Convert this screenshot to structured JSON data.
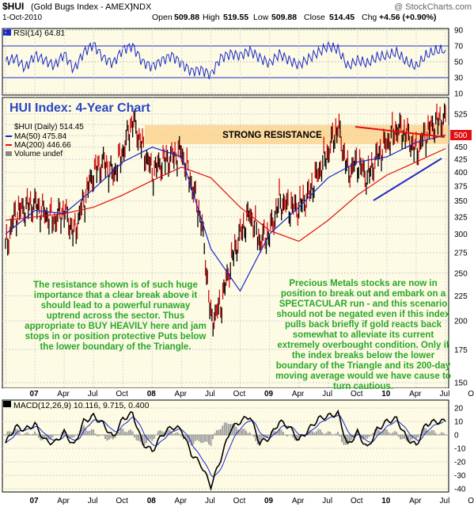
{
  "header": {
    "symbol": "$HUI",
    "name": "(Gold Bugs Index - AMEX)",
    "exchange": "INDX",
    "date": "1-Oct-2010",
    "watermark": "@ StockCharts.com",
    "open_label": "Open",
    "open": "509.88",
    "high_label": "High",
    "high": "519.55",
    "low_label": "Low",
    "low": "509.88",
    "close_label": "Close",
    "close": "514.45",
    "chg_label": "Chg",
    "chg": "+4.56 (+0.90%)"
  },
  "rsi_panel": {
    "legend": "RSI(14) 64.81",
    "ticks": [
      "90",
      "70",
      "50",
      "30",
      "10"
    ]
  },
  "price_panel": {
    "chart_title": "HUI Index: 4-Year Chart",
    "legend_price": "$HUI (Daily) 514.45",
    "legend_ma50": "MA(50) 475.84",
    "legend_ma200": "MA(200) 446.66",
    "legend_volume": "Volume undef",
    "resistance_label": "STRONG RESISTANCE",
    "price_ticks": [
      "525",
      "500",
      "475",
      "450",
      "425",
      "400",
      "375",
      "350",
      "325",
      "300",
      "275",
      "250",
      "225",
      "200",
      "175",
      "150"
    ],
    "last_price_tag": "500",
    "annotation_left": "The resistance shown is of such huge importance that a clear break above it should lead to a powerful runaway uptrend across the sector. Thus appropriate to BUY HEAVILY here and jam stops in or position protective Puts below the lower boundary of the Triangle.",
    "annotation_right": "Precious Metals stocks are now in position to break out and embark on a SPECTACULAR run - and this scenario should not be negated even if this index pulls back briefly if gold reacts back somewhat to alleviate its current extremely overbought condition. Only if the index breaks below the lower boundary of the Triangle and its 200-day moving average would we have cause to turn cautious."
  },
  "macd_panel": {
    "legend": "MACD(12,26,9) 10.116, 9.715, 0.400",
    "ticks": [
      "20",
      "10",
      "0",
      "-10",
      "-20",
      "-30",
      "-40"
    ]
  },
  "x_axis": {
    "labels": [
      "07",
      "Apr",
      "Jul",
      "Oct",
      "08",
      "Apr",
      "Jul",
      "Oct",
      "09",
      "Apr",
      "Jul",
      "Oct",
      "10",
      "Apr",
      "Jul",
      "Oct"
    ]
  },
  "colors": {
    "panel_bg": "#fdfbe4",
    "price_bull": "#000000",
    "price_bear": "#d01010",
    "ma50": "#1a28c8",
    "ma200": "#e01010",
    "resistance_band": "#fbd28f",
    "triangle_top": "#e01010",
    "triangle_bottom": "#2828c8",
    "annotation_text": "#28a828",
    "title_text": "#2a46c4",
    "rsi_line": "#1a28c8",
    "macd_line": "#000000",
    "signal_line": "#1a28c8",
    "histogram": "#a0a0a0"
  },
  "chart_data": [
    {
      "type": "line",
      "title": "RSI(14)",
      "x_range": [
        "2007-01",
        "2010-10"
      ],
      "ylim": [
        10,
        90
      ],
      "reference_lines": [
        70,
        50,
        30
      ],
      "series": [
        {
          "name": "RSI(14)",
          "x": [
            "2007-01",
            "2007-02",
            "2007-03",
            "2007-04",
            "2007-05",
            "2007-06",
            "2007-07",
            "2007-08",
            "2007-09",
            "2007-10",
            "2007-11",
            "2007-12",
            "2008-01",
            "2008-02",
            "2008-03",
            "2008-04",
            "2008-05",
            "2008-06",
            "2008-07",
            "2008-08",
            "2008-09",
            "2008-10",
            "2008-11",
            "2008-12",
            "2009-01",
            "2009-02",
            "2009-03",
            "2009-04",
            "2009-05",
            "2009-06",
            "2009-07",
            "2009-08",
            "2009-09",
            "2009-10",
            "2009-11",
            "2009-12",
            "2010-01",
            "2010-02",
            "2010-03",
            "2010-04",
            "2010-05",
            "2010-06",
            "2010-07",
            "2010-08",
            "2010-09",
            "2010-10"
          ],
          "values": [
            50,
            55,
            42,
            58,
            52,
            45,
            60,
            40,
            62,
            72,
            55,
            48,
            66,
            70,
            50,
            44,
            52,
            58,
            48,
            38,
            40,
            34,
            55,
            60,
            58,
            64,
            55,
            48,
            60,
            52,
            46,
            54,
            62,
            70,
            66,
            44,
            52,
            48,
            56,
            58,
            62,
            50,
            44,
            58,
            64,
            65
          ]
        }
      ]
    },
    {
      "type": "line",
      "title": "HUI Index: 4-Year Chart",
      "x_range": [
        "2007-01",
        "2010-10"
      ],
      "ylim": [
        150,
        525
      ],
      "log_scale": true,
      "series": [
        {
          "name": "$HUI (Daily)",
          "x": [
            "2007-01",
            "2007-02",
            "2007-03",
            "2007-04",
            "2007-05",
            "2007-06",
            "2007-07",
            "2007-08",
            "2007-09",
            "2007-10",
            "2007-11",
            "2007-12",
            "2008-01",
            "2008-02",
            "2008-03",
            "2008-04",
            "2008-05",
            "2008-06",
            "2008-07",
            "2008-08",
            "2008-09",
            "2008-10",
            "2008-11",
            "2008-12",
            "2009-01",
            "2009-02",
            "2009-03",
            "2009-04",
            "2009-05",
            "2009-06",
            "2009-07",
            "2009-08",
            "2009-09",
            "2009-10",
            "2009-11",
            "2009-12",
            "2010-01",
            "2010-02",
            "2010-03",
            "2010-04",
            "2010-05",
            "2010-06",
            "2010-07",
            "2010-08",
            "2010-09",
            "2010-10"
          ],
          "values": [
            280,
            330,
            340,
            345,
            330,
            320,
            335,
            300,
            350,
            400,
            420,
            395,
            440,
            510,
            450,
            400,
            420,
            430,
            440,
            380,
            320,
            200,
            215,
            260,
            300,
            330,
            290,
            300,
            350,
            340,
            340,
            360,
            400,
            440,
            495,
            400,
            420,
            390,
            430,
            460,
            490,
            480,
            440,
            480,
            505,
            514
          ]
        },
        {
          "name": "MA(50)",
          "x": [
            "2007-01",
            "2007-04",
            "2007-07",
            "2007-10",
            "2008-01",
            "2008-04",
            "2008-07",
            "2008-10",
            "2009-01",
            "2009-04",
            "2009-07",
            "2009-10",
            "2010-01",
            "2010-04",
            "2010-07",
            "2010-10"
          ],
          "values": [
            300,
            335,
            330,
            370,
            420,
            450,
            430,
            280,
            230,
            300,
            340,
            390,
            420,
            430,
            460,
            476
          ]
        },
        {
          "name": "MA(200)",
          "x": [
            "2007-01",
            "2007-04",
            "2007-07",
            "2007-10",
            "2008-01",
            "2008-04",
            "2008-07",
            "2008-10",
            "2009-01",
            "2009-04",
            "2009-07",
            "2009-10",
            "2010-01",
            "2010-04",
            "2010-07",
            "2010-10"
          ],
          "values": [
            320,
            325,
            330,
            340,
            360,
            385,
            410,
            390,
            340,
            305,
            290,
            320,
            360,
            395,
            420,
            447
          ]
        }
      ],
      "annotations": [
        "STRONG RESISTANCE"
      ]
    },
    {
      "type": "line",
      "title": "MACD(12,26,9)",
      "x_range": [
        "2007-01",
        "2010-10"
      ],
      "ylim": [
        -40,
        20
      ],
      "series": [
        {
          "name": "MACD",
          "x": [
            "2007-01",
            "2007-02",
            "2007-03",
            "2007-04",
            "2007-05",
            "2007-06",
            "2007-07",
            "2007-08",
            "2007-09",
            "2007-10",
            "2007-11",
            "2007-12",
            "2008-01",
            "2008-02",
            "2008-03",
            "2008-04",
            "2008-05",
            "2008-06",
            "2008-07",
            "2008-08",
            "2008-09",
            "2008-10",
            "2008-11",
            "2008-12",
            "2009-01",
            "2009-02",
            "2009-03",
            "2009-04",
            "2009-05",
            "2009-06",
            "2009-07",
            "2009-08",
            "2009-09",
            "2009-10",
            "2009-11",
            "2009-12",
            "2010-01",
            "2010-02",
            "2010-03",
            "2010-04",
            "2010-05",
            "2010-06",
            "2010-07",
            "2010-08",
            "2010-09",
            "2010-10"
          ],
          "values": [
            -6,
            6,
            4,
            8,
            -4,
            -6,
            2,
            -8,
            10,
            14,
            8,
            -2,
            12,
            16,
            -6,
            -12,
            0,
            6,
            4,
            -14,
            -22,
            -38,
            -18,
            4,
            10,
            14,
            -6,
            -2,
            10,
            6,
            -4,
            4,
            12,
            14,
            16,
            -8,
            2,
            -10,
            4,
            10,
            12,
            -2,
            -8,
            8,
            10,
            10
          ]
        },
        {
          "name": "Signal",
          "x": [
            "2007-01",
            "2007-04",
            "2007-07",
            "2007-10",
            "2008-01",
            "2008-04",
            "2008-07",
            "2008-10",
            "2009-01",
            "2009-04",
            "2009-07",
            "2009-10",
            "2010-01",
            "2010-04",
            "2010-07",
            "2010-10"
          ],
          "values": [
            -4,
            5,
            0,
            10,
            10,
            -8,
            2,
            -32,
            6,
            0,
            0,
            12,
            0,
            6,
            -4,
            10
          ]
        }
      ]
    }
  ]
}
